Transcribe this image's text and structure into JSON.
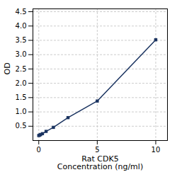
{
  "chart_data": {
    "type": "line",
    "xlabel": "Rat CDK5\nConcentration (ng/ml)",
    "ylabel": "OD",
    "x": [
      0.0,
      0.078,
      0.156,
      0.313,
      0.625,
      1.25,
      2.5,
      5.0,
      10.0
    ],
    "values": [
      0.175,
      0.19,
      0.21,
      0.24,
      0.32,
      0.46,
      0.8,
      1.38,
      3.52
    ],
    "color": "#1a3360",
    "marker": "square",
    "line_style": "solid",
    "xlim": [
      -0.5,
      11
    ],
    "ylim": [
      0,
      4.6
    ],
    "xticks": [
      0,
      5,
      10
    ],
    "yticks": [
      0.5,
      {
        "value": 1,
        "label": "1.0"
      },
      1.5,
      {
        "value": 2,
        "label": "2.0"
      },
      2.5,
      {
        "value": 3,
        "label": "3.0"
      },
      3.5,
      {
        "value": 4,
        "label": "4.0"
      },
      4.5
    ],
    "grid": true
  }
}
